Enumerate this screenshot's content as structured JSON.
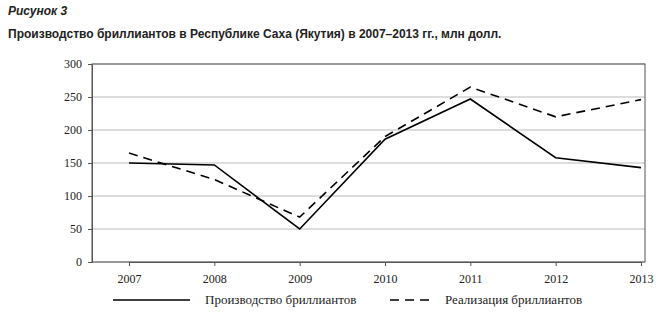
{
  "chart_data": {
    "type": "line",
    "annotations": [
      "Рисунок 3"
    ],
    "title": "Производство бриллиантов в Республике Саха (Якутия) в 2007–2013 гг., млн долл.",
    "categories": [
      "2007",
      "2008",
      "2009",
      "2010",
      "2011",
      "2012",
      "2013"
    ],
    "series": [
      {
        "name": "Производство бриллиантов",
        "color": "#000000",
        "line_style": "solid",
        "values": [
          150,
          147,
          50,
          186,
          247,
          158,
          143
        ]
      },
      {
        "name": "Реализация бриллиантов",
        "color": "#000000",
        "line_style": "dashed",
        "values": [
          165,
          125,
          68,
          190,
          265,
          220,
          246
        ]
      }
    ],
    "ylim": [
      0,
      300
    ],
    "yticks": [
      0,
      50,
      100,
      150,
      200,
      250,
      300
    ],
    "grid": true,
    "legend": "bottom"
  }
}
